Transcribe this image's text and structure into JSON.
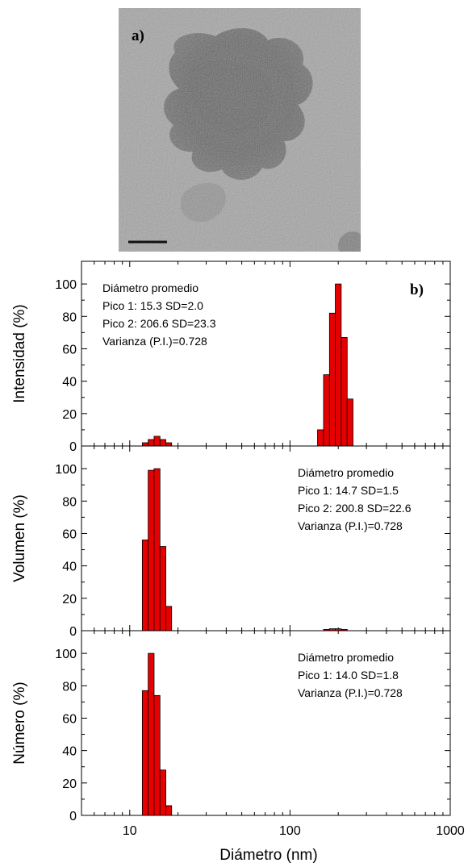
{
  "tem_image": {
    "label": "a)",
    "description_icon": "tem-micrograph"
  },
  "panel_b_label": "b)",
  "x_axis": {
    "label": "Diámetro (nm)",
    "scale": "log",
    "range": [
      5,
      1000
    ],
    "tick_labels": [
      "10",
      "100",
      "1000"
    ]
  },
  "colors": {
    "bar": "#e60000",
    "bar_edge": "#000000"
  },
  "chart_data": [
    {
      "type": "bar",
      "ylabel": "Intensidad (%)",
      "ylim": [
        0,
        110
      ],
      "yticks": [
        0,
        20,
        40,
        60,
        80,
        100
      ],
      "annotation": [
        "Diámetro promedio",
        "Pico 1: 15.3 SD=2.0",
        "Pico 2: 206.6 SD=23.3",
        "Varianza (P.I.)=0.728"
      ],
      "annotation_position": "top-left",
      "x": [
        12.5,
        13.6,
        14.8,
        16.1,
        17.5,
        155,
        169,
        184,
        200,
        218,
        237,
        258
      ],
      "values": [
        2,
        4,
        6,
        4,
        2,
        10,
        44,
        82,
        100,
        67,
        29,
        0
      ]
    },
    {
      "type": "bar",
      "ylabel": "Volumen (%)",
      "ylim": [
        0,
        110
      ],
      "yticks": [
        0,
        20,
        40,
        60,
        80,
        100
      ],
      "annotation": [
        "Diámetro promedio",
        "Pico 1: 14.7 SD=1.5",
        "Pico 2: 200.8 SD=22.6",
        "Varianza (P.I.)=0.728"
      ],
      "annotation_position": "top-right",
      "x": [
        12.5,
        13.6,
        14.8,
        16.1,
        17.5,
        169,
        184,
        200,
        218
      ],
      "values": [
        56,
        99,
        100,
        52,
        15,
        0.8,
        1.2,
        1.2,
        0.8
      ]
    },
    {
      "type": "bar",
      "ylabel": "Número (%)",
      "ylim": [
        0,
        110
      ],
      "yticks": [
        0,
        20,
        40,
        60,
        80,
        100
      ],
      "annotation": [
        "Diámetro promedio",
        "Pico 1: 14.0 SD=1.8",
        "Varianza (P.I.)=0.728"
      ],
      "annotation_position": "top-right",
      "x": [
        12.5,
        13.6,
        14.8,
        16.1,
        17.5
      ],
      "values": [
        77,
        100,
        74,
        28,
        6
      ]
    }
  ]
}
